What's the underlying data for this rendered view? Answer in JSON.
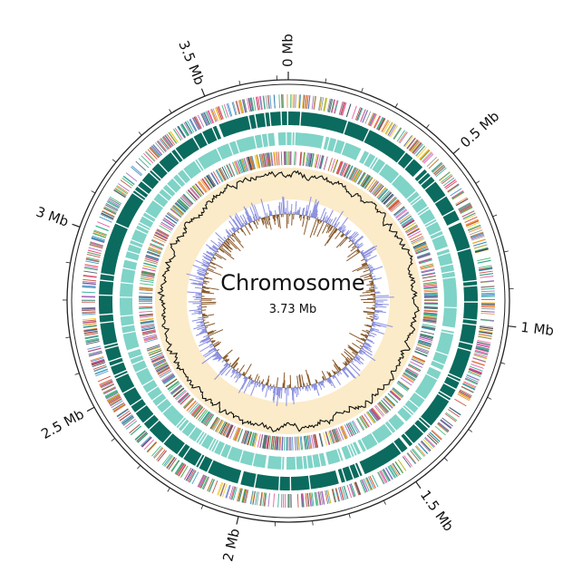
{
  "chart_data": {
    "type": "circular-genome-map",
    "title": "Chromosome",
    "subtitle": "3.73 Mb",
    "genome_length_mb": 3.73,
    "major_ticks": [
      {
        "label": "0 Mb",
        "value_mb": 0
      },
      {
        "label": "0.5 Mb",
        "value_mb": 0.5
      },
      {
        "label": "1 Mb",
        "value_mb": 1
      },
      {
        "label": "1.5 Mb",
        "value_mb": 1.5
      },
      {
        "label": "2 Mb",
        "value_mb": 2
      },
      {
        "label": "2.5 Mb",
        "value_mb": 2.5
      },
      {
        "label": "3 Mb",
        "value_mb": 3
      },
      {
        "label": "3.5 Mb",
        "value_mb": 3.5
      }
    ],
    "tracks": [
      {
        "name": "",
        "kind": "features-forward-colored"
      },
      {
        "name": "",
        "kind": "cds-forward",
        "color": "#0b6b5e"
      },
      {
        "name": "",
        "kind": "cds-reverse",
        "color": "#7fd3c7"
      },
      {
        "name": "",
        "kind": "features-reverse-colored"
      },
      {
        "name": "",
        "kind": "gc-content",
        "line_color": "#111111",
        "fill_color": "#fbebc9"
      },
      {
        "name": "",
        "kind": "gc-skew",
        "positive_color": "#8a8fe0",
        "negative_color": "#8a5a2b"
      }
    ],
    "feature_palette": [
      "#c0392b",
      "#e67e22",
      "#9b59b6",
      "#2e86c1",
      "#27ae60",
      "#f1c40f",
      "#7f8c8d",
      "#e84393",
      "#16a085",
      "#34495e"
    ]
  }
}
